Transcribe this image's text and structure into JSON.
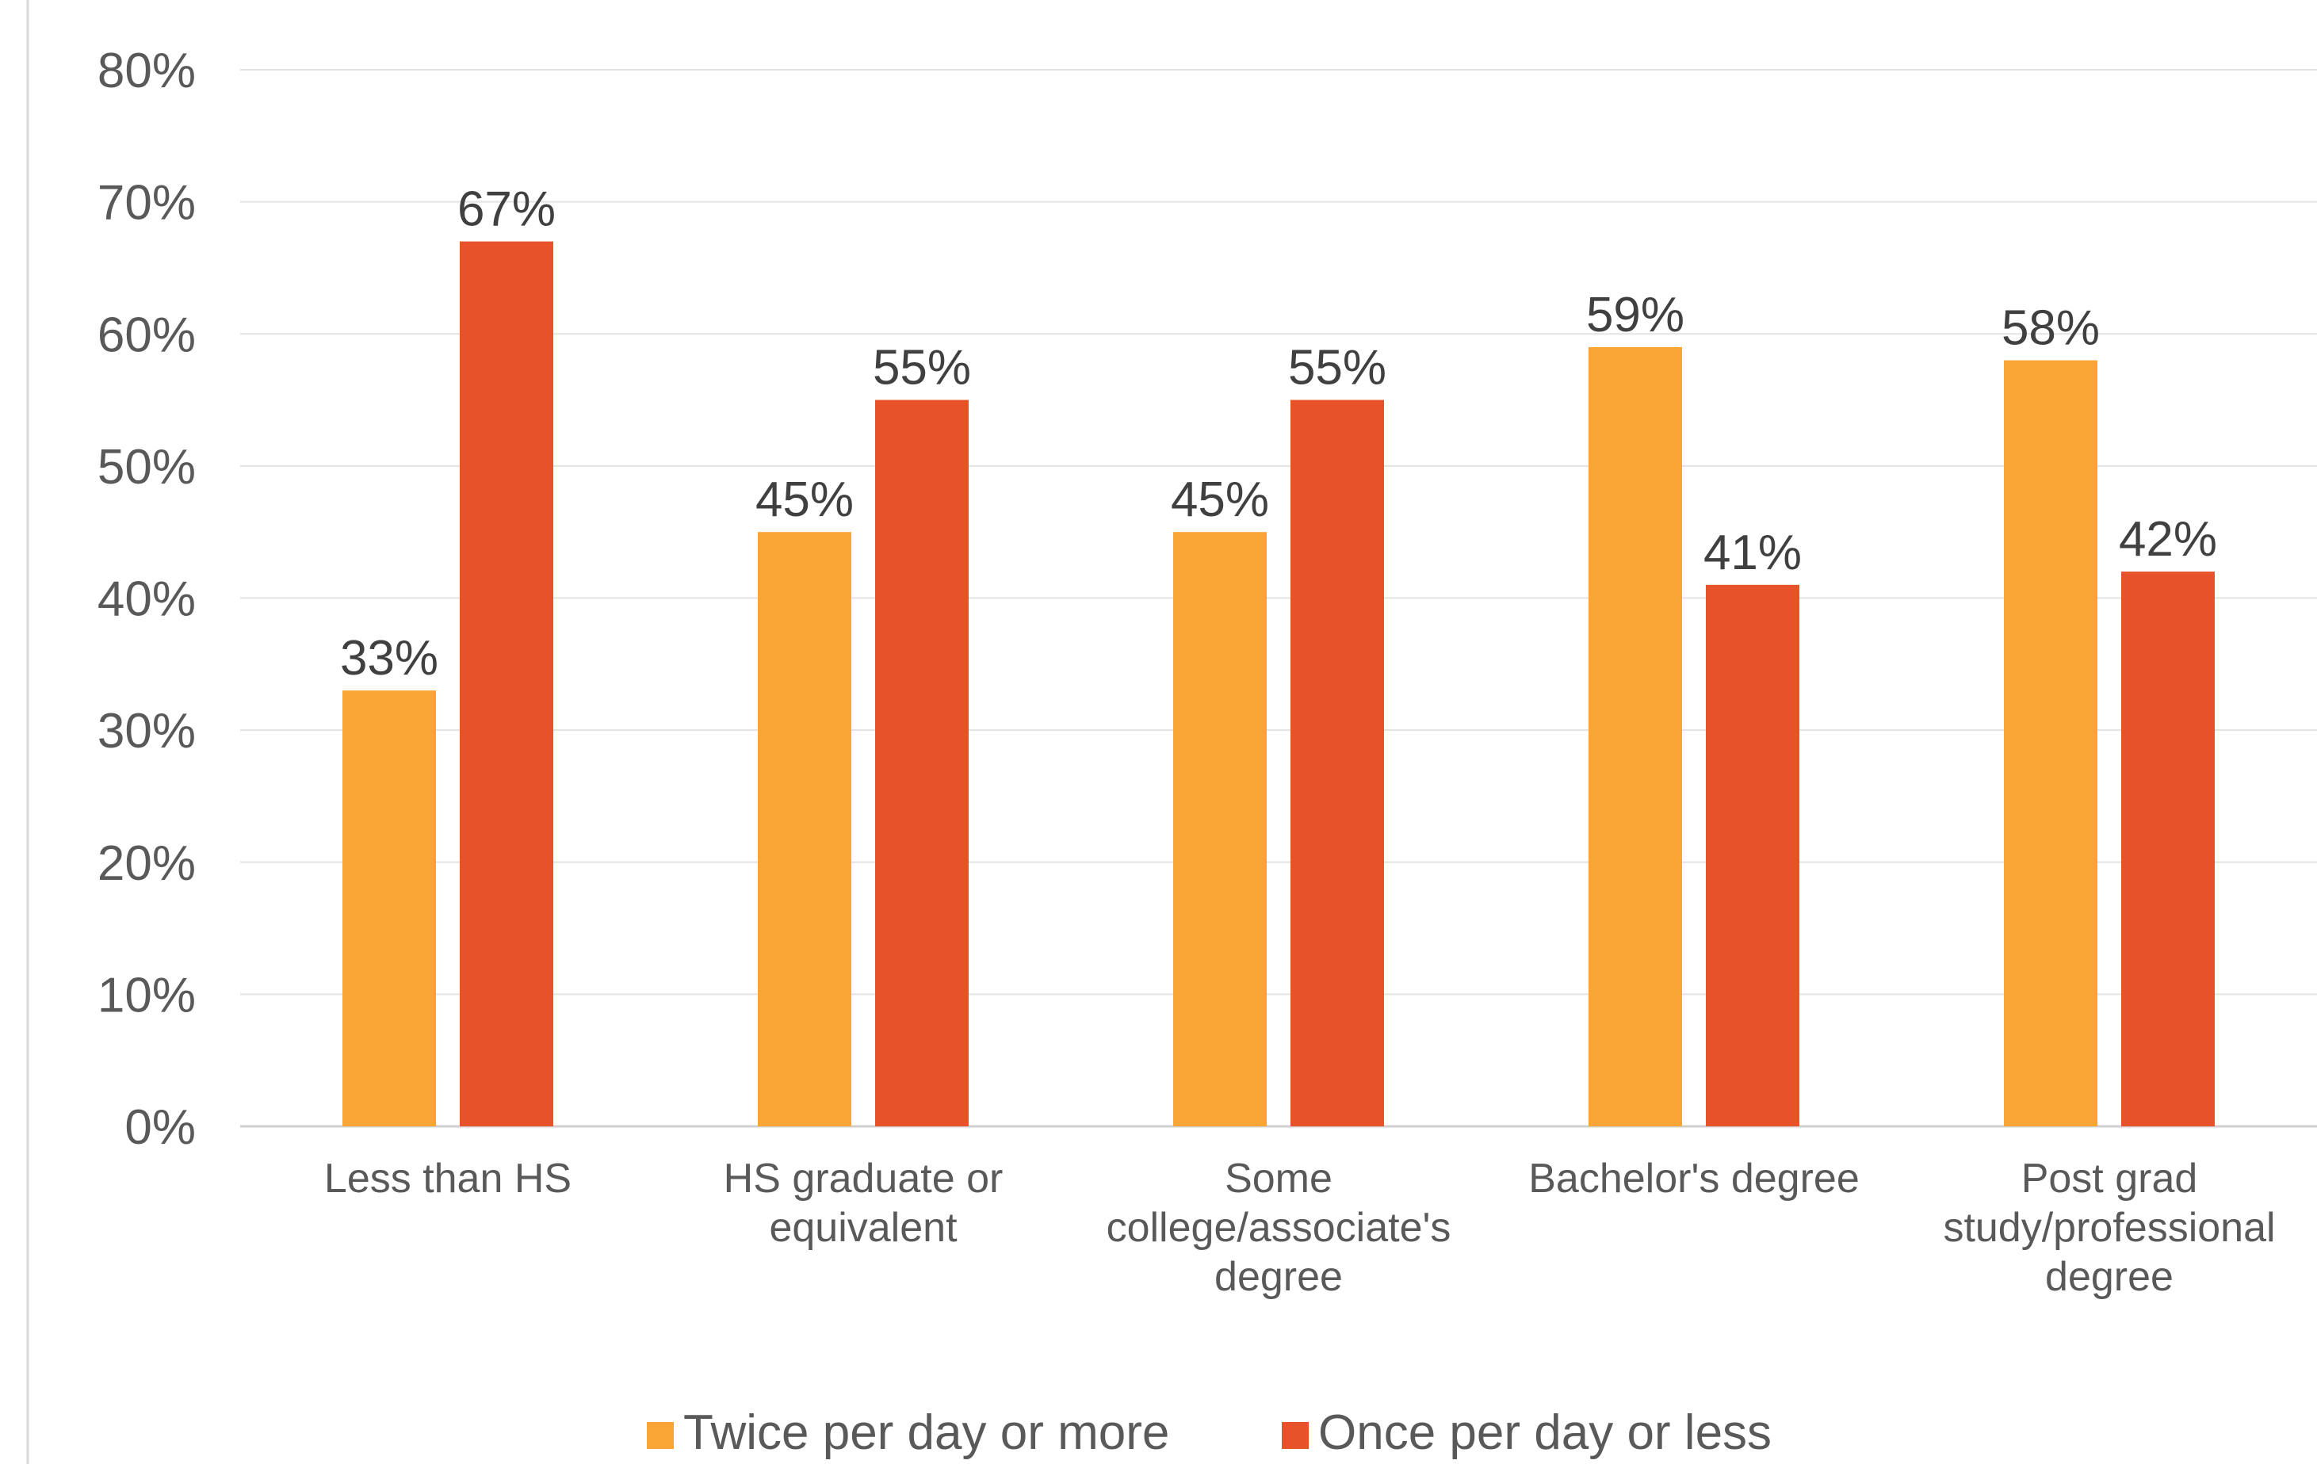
{
  "chart_data": {
    "type": "bar",
    "title": "",
    "xlabel": "",
    "ylabel": "",
    "ylim": [
      0,
      80
    ],
    "yticks": [
      0,
      10,
      20,
      30,
      40,
      50,
      60,
      70,
      80
    ],
    "ytick_labels": [
      "0%",
      "10%",
      "20%",
      "30%",
      "40%",
      "50%",
      "60%",
      "70%",
      "80%"
    ],
    "grid": true,
    "legend_position": "bottom",
    "categories": [
      [
        "Less than HS"
      ],
      [
        "HS graduate or",
        "equivalent"
      ],
      [
        "Some",
        "college/associate's",
        "degree"
      ],
      [
        "Bachelor's degree"
      ],
      [
        "Post grad",
        "study/professional",
        "degree"
      ]
    ],
    "series": [
      {
        "name": "Twice per day or more",
        "color": "#F8A535",
        "values": [
          33,
          45,
          45,
          59,
          58
        ],
        "labels": [
          "33%",
          "45%",
          "45%",
          "59%",
          "58%"
        ]
      },
      {
        "name": "Once per day or less",
        "color": "#E8522A",
        "values": [
          67,
          55,
          55,
          41,
          42
        ],
        "labels": [
          "67%",
          "55%",
          "55%",
          "41%",
          "42%"
        ]
      }
    ]
  }
}
